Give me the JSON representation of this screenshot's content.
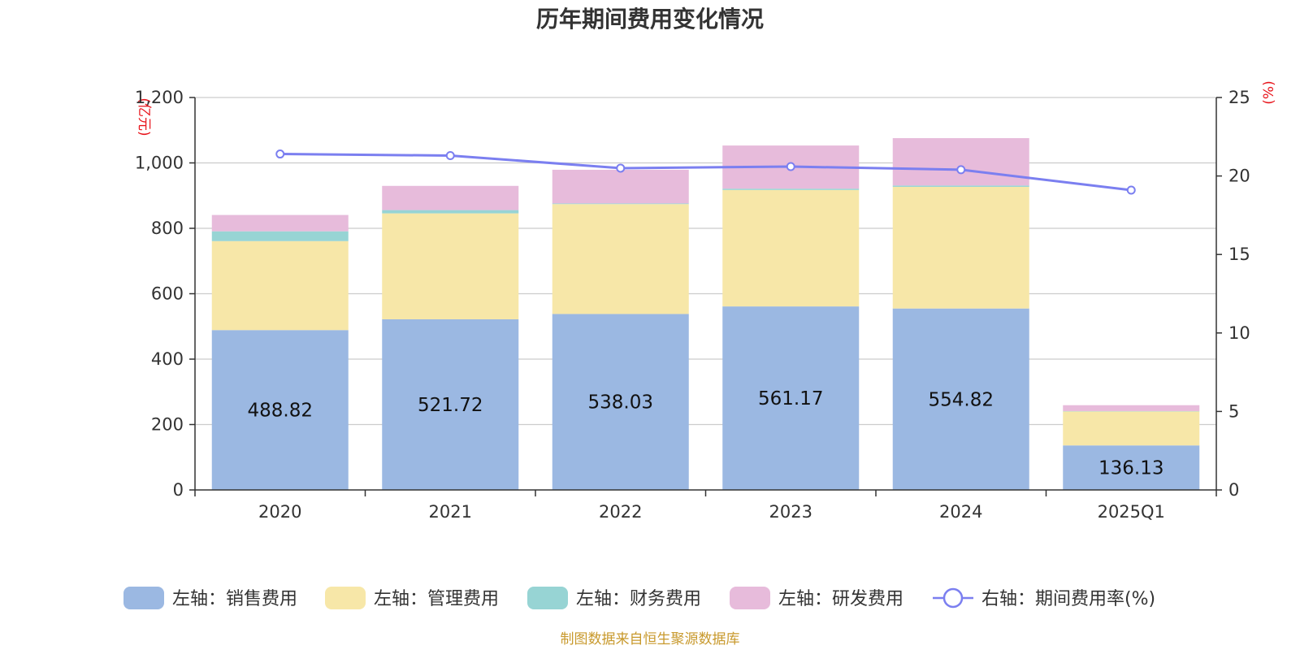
{
  "chart_data": {
    "type": "bar",
    "stacked": true,
    "title": "历年期间费用变化情况",
    "categories": [
      "2020",
      "2021",
      "2022",
      "2023",
      "2024",
      "2025Q1"
    ],
    "left_axis": {
      "unit_label": "(亿元)",
      "ylim": [
        0,
        1200
      ],
      "ticks": [
        0,
        200,
        400,
        600,
        800,
        1000,
        1200
      ],
      "tick_labels": [
        "0",
        "200",
        "400",
        "600",
        "800",
        "1,000",
        "1,200"
      ]
    },
    "right_axis": {
      "unit_label": "(%)",
      "ylim": [
        0,
        25
      ],
      "ticks": [
        0,
        5,
        10,
        15,
        20,
        25
      ],
      "tick_labels": [
        "0",
        "5",
        "10",
        "15",
        "20",
        "25"
      ]
    },
    "series": [
      {
        "name": "左轴：销售费用",
        "axis": "left",
        "color": "#9bb8e2",
        "values": [
          488.82,
          521.72,
          538.03,
          561.17,
          554.82,
          136.13
        ],
        "labels": [
          "488.82",
          "521.72",
          "538.03",
          "561.17",
          "554.82",
          "136.13"
        ]
      },
      {
        "name": "左轴：管理费用",
        "axis": "left",
        "color": "#f7e7a8",
        "values": [
          272,
          324,
          336,
          356,
          372,
          104
        ]
      },
      {
        "name": "左轴：财务费用",
        "axis": "left",
        "color": "#97d4d4",
        "values": [
          30,
          10,
          2,
          4,
          4,
          1
        ]
      },
      {
        "name": "左轴：研发费用",
        "axis": "left",
        "color": "#e7bbdb",
        "values": [
          50,
          74,
          103,
          132,
          145,
          18
        ]
      },
      {
        "name": "右轴：期间费用率(%)",
        "axis": "right",
        "type": "line",
        "color": "#7b7ff0",
        "values": [
          21.4,
          21.3,
          20.5,
          20.6,
          20.4,
          19.1
        ]
      }
    ]
  },
  "source": "制图数据来自恒生聚源数据库"
}
